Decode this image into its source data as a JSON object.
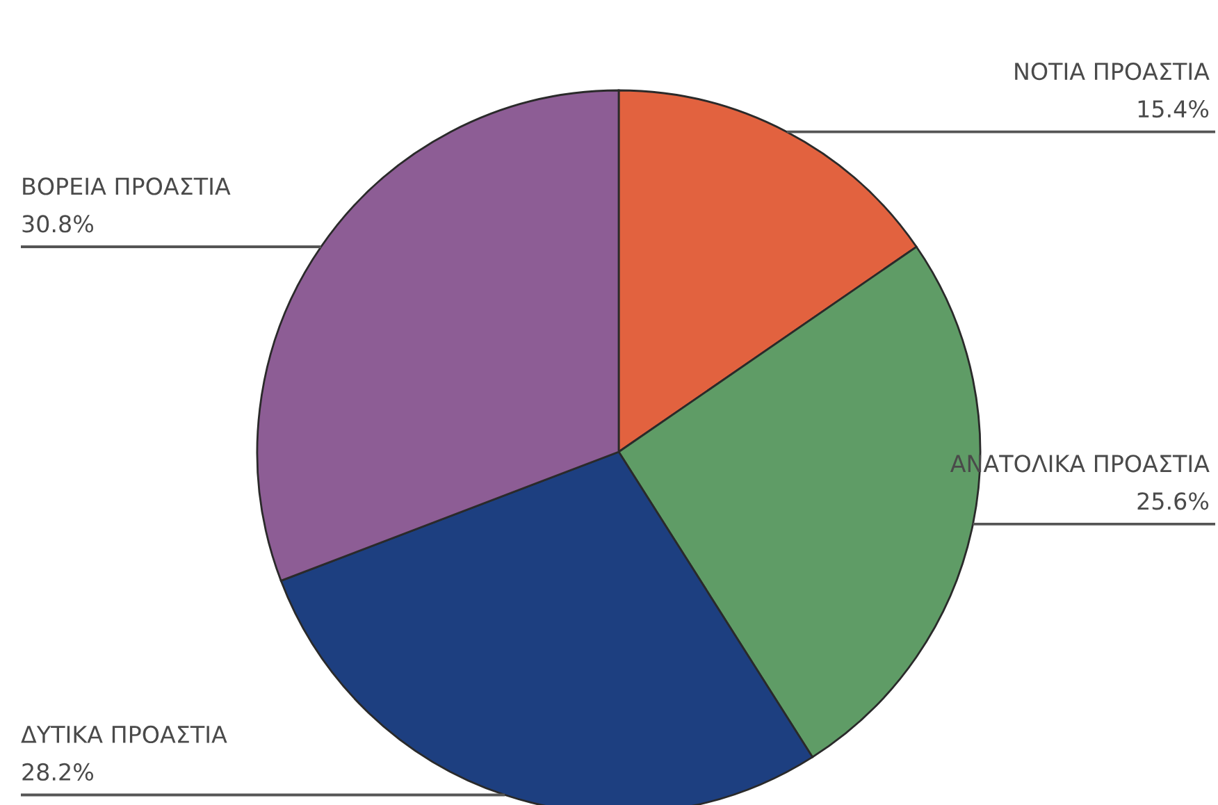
{
  "chart_data": {
    "type": "pie",
    "categories": [
      "ΝΟΤΙΑ ΠΡΟΑΣΤΙΑ",
      "ΑΝΑΤΟΛΙΚΑ ΠΡΟΑΣΤΙΑ",
      "ΔΥΤΙΚΑ ΠΡΟΑΣΤΙΑ",
      "ΒΟΡΕΙΑ ΠΡΟΑΣΤΙΑ"
    ],
    "values": [
      15.4,
      25.6,
      28.2,
      30.8
    ],
    "colors": [
      "#e2623f",
      "#5f9c66",
      "#1d3f80",
      "#8d5d95"
    ],
    "value_labels": [
      "15.4%",
      "25.6%",
      "28.2%",
      "30.8%"
    ]
  }
}
